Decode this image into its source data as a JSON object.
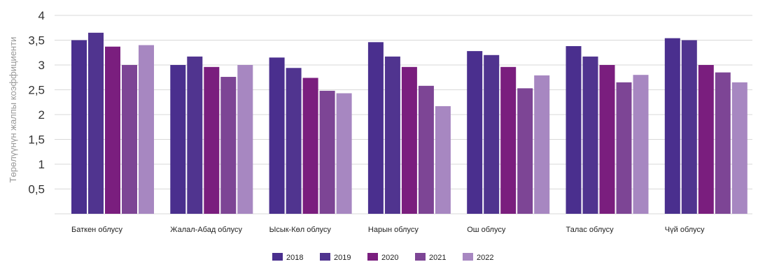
{
  "chart_data": {
    "type": "bar",
    "ylabel": "Төрөлүүнүн жалпы коэффициенти",
    "ylim": [
      0,
      4
    ],
    "yticks": [
      "0,5",
      "1",
      "1,5",
      "2",
      "2,5",
      "3",
      "3,5",
      "4"
    ],
    "ytick_values": [
      0.5,
      1,
      1.5,
      2,
      2.5,
      3,
      3.5,
      4
    ],
    "grid": true,
    "legend_position": "bottom",
    "categories": [
      "Баткен облусу",
      "Жалал-Абад облусу",
      "Ысык-Көл облусу",
      "Нарын облусу",
      "Ош облусу",
      "Талас облусу",
      "Чүй облусу"
    ],
    "series": [
      {
        "name": "2018",
        "color": "#4a2f8e",
        "values": [
          3.5,
          3.0,
          3.15,
          3.46,
          3.28,
          3.38,
          3.54
        ]
      },
      {
        "name": "2019",
        "color": "#50348f",
        "values": [
          3.65,
          3.17,
          2.94,
          3.17,
          3.2,
          3.17,
          3.5
        ]
      },
      {
        "name": "2020",
        "color": "#7a1e7e",
        "values": [
          3.37,
          2.96,
          2.74,
          2.96,
          2.96,
          3.0,
          3.0
        ]
      },
      {
        "name": "2021",
        "color": "#7d4595",
        "values": [
          3.0,
          2.76,
          2.48,
          2.58,
          2.53,
          2.65,
          2.85
        ]
      },
      {
        "name": "2022",
        "color": "#a787c1",
        "values": [
          3.4,
          3.0,
          2.43,
          2.17,
          2.79,
          2.8,
          2.65
        ]
      }
    ]
  }
}
